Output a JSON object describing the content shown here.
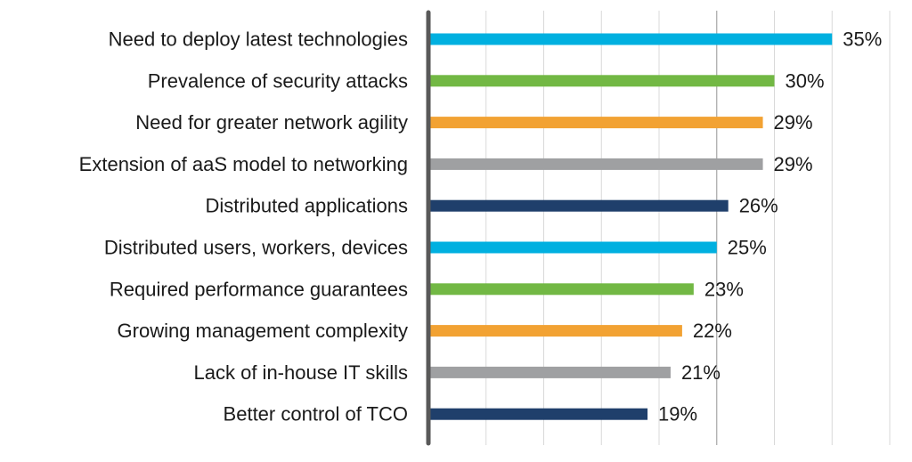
{
  "chart_data": {
    "type": "bar",
    "orientation": "horizontal",
    "categories": [
      "Need to deploy latest technologies",
      "Prevalence of security attacks",
      "Need for greater network agility",
      "Extension of aaS model to networking",
      "Distributed applications",
      "Distributed users, workers, devices",
      "Required performance guarantees",
      "Growing management complexity",
      "Lack of in-house IT skills",
      "Better control of TCO"
    ],
    "values": [
      35,
      30,
      29,
      29,
      26,
      25,
      23,
      22,
      21,
      19
    ],
    "value_labels": [
      "35%",
      "30%",
      "29%",
      "29%",
      "26%",
      "25%",
      "23%",
      "22%",
      "21%",
      "19%"
    ],
    "bar_colors": [
      "#00b0e0",
      "#72b844",
      "#f2a233",
      "#9fa0a2",
      "#1f3f6b",
      "#00b0e0",
      "#72b844",
      "#f2a233",
      "#9fa0a2",
      "#1f3f6b"
    ],
    "xlim": [
      0,
      40
    ],
    "grid": true,
    "legend": "none"
  }
}
